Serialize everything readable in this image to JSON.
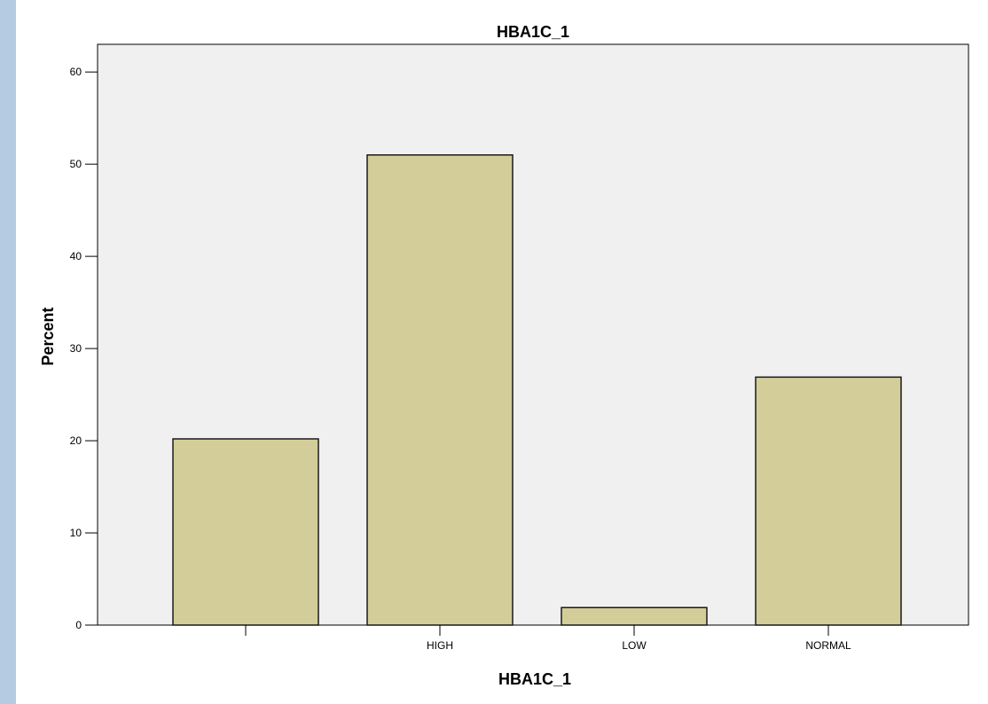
{
  "chart_data": {
    "type": "bar",
    "title": "HBA1C_1",
    "xlabel": "HBA1C_1",
    "ylabel": "Percent",
    "categories": [
      "",
      "HIGH",
      "LOW",
      "NORMAL"
    ],
    "values": [
      20.2,
      51.0,
      1.9,
      26.9
    ],
    "ylim": [
      0,
      63
    ],
    "yticks": [
      0,
      10,
      20,
      30,
      40,
      50,
      60
    ],
    "grid": false,
    "legend": "none",
    "colors": {
      "bar_fill": "#d3ce99",
      "bar_stroke": "#1a1a1a",
      "plot_background": "#f0f0f0",
      "page_background": "#b4cbe1"
    }
  }
}
